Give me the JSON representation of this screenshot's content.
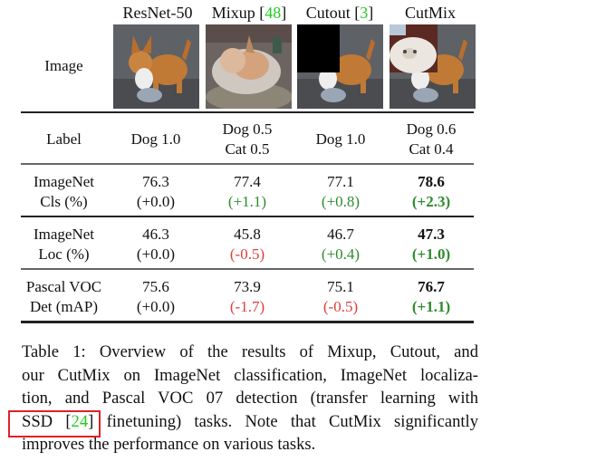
{
  "table": {
    "columns": [
      {
        "name": "ResNet-50",
        "cite": ""
      },
      {
        "name": "Mixup",
        "cite": "48"
      },
      {
        "name": "Cutout",
        "cite": "3"
      },
      {
        "name": "CutMix",
        "cite": ""
      }
    ],
    "image_row_label": "Image",
    "image_descriptions": [
      "corgi dog",
      "dog blended with cat",
      "dog with black cutout patch",
      "dog with cat patch pasted"
    ],
    "label_row": {
      "label": "Label",
      "values": [
        [
          "Dog 1.0"
        ],
        [
          "Dog 0.5",
          "Cat 0.5"
        ],
        [
          "Dog 1.0"
        ],
        [
          "Dog 0.6",
          "Cat 0.4"
        ]
      ]
    },
    "metric_rows": [
      {
        "label": [
          "ImageNet",
          "Cls (%)"
        ],
        "values": [
          "76.3",
          "77.4",
          "77.1",
          "78.6"
        ],
        "deltas": [
          "(+0.0)",
          "(+1.1)",
          "(+0.8)",
          "(+2.3)"
        ],
        "delta_signs": [
          "neutral",
          "pos",
          "pos",
          "pos"
        ]
      },
      {
        "label": [
          "ImageNet",
          "Loc (%)"
        ],
        "values": [
          "46.3",
          "45.8",
          "46.7",
          "47.3"
        ],
        "deltas": [
          "(+0.0)",
          "(-0.5)",
          "(+0.4)",
          "(+1.0)"
        ],
        "delta_signs": [
          "neutral",
          "neg",
          "pos",
          "pos"
        ]
      },
      {
        "label": [
          "Pascal VOC",
          "Det (mAP)"
        ],
        "values": [
          "75.6",
          "73.9",
          "75.1",
          "76.7"
        ],
        "deltas": [
          "(+0.0)",
          "(-1.7)",
          "(-0.5)",
          "(+1.1)"
        ],
        "delta_signs": [
          "neutral",
          "neg",
          "neg",
          "pos"
        ]
      }
    ]
  },
  "caption": {
    "lines": [
      "Table 1: Overview of the results of Mixup, Cutout, and",
      "our CutMix on ImageNet classification, ImageNet localiza-",
      "tion, and Pascal VOC 07 detection (transfer learning with",
      "SSD [24] finetuning) tasks. Note that CutMix significantly",
      "improves the performance on various tasks."
    ],
    "highlight": "SSD [24]"
  },
  "colors": {
    "citation": "#22cc22",
    "positive": "#2e8b2e",
    "negative": "#e03c3c",
    "highlight_box": "#e0202a"
  }
}
